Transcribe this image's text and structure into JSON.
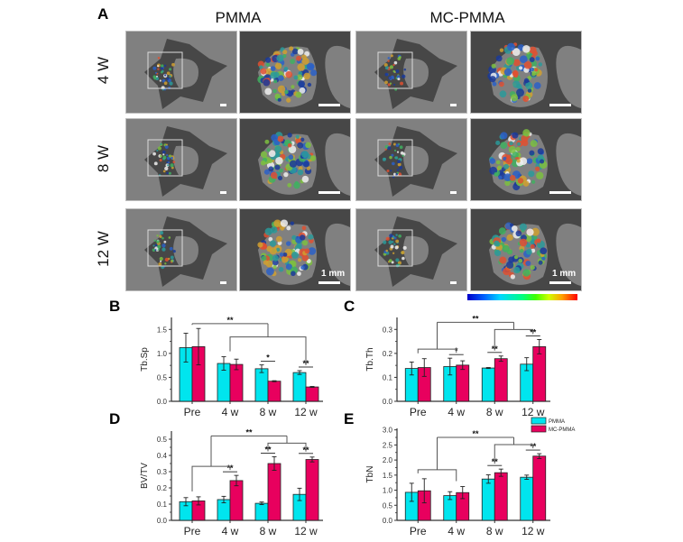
{
  "panel_labels": {
    "A": "A",
    "B": "B",
    "C": "C",
    "D": "D",
    "E": "E"
  },
  "panel_A": {
    "column_titles": [
      "PMMA",
      "MC-PMMA"
    ],
    "row_labels": [
      "4 W",
      "8 W",
      "12 W"
    ],
    "scale_bar_label": "1 mm",
    "colorbar": {
      "colors": [
        "#0000c8",
        "#00d8ff",
        "#40ff00",
        "#ffa000",
        "#ff0000"
      ]
    },
    "images": [
      {
        "row": "4 W",
        "group": "PMMA",
        "view": "overview"
      },
      {
        "row": "4 W",
        "group": "PMMA",
        "view": "zoom"
      },
      {
        "row": "4 W",
        "group": "MC-PMMA",
        "view": "overview"
      },
      {
        "row": "4 W",
        "group": "MC-PMMA",
        "view": "zoom"
      },
      {
        "row": "8 W",
        "group": "PMMA",
        "view": "overview"
      },
      {
        "row": "8 W",
        "group": "PMMA",
        "view": "zoom"
      },
      {
        "row": "8 W",
        "group": "MC-PMMA",
        "view": "overview"
      },
      {
        "row": "8 W",
        "group": "MC-PMMA",
        "view": "zoom"
      },
      {
        "row": "12 W",
        "group": "PMMA",
        "view": "overview"
      },
      {
        "row": "12 W",
        "group": "PMMA",
        "view": "zoom"
      },
      {
        "row": "12 W",
        "group": "MC-PMMA",
        "view": "overview"
      },
      {
        "row": "12 W",
        "group": "MC-PMMA",
        "view": "zoom"
      }
    ]
  },
  "colors": {
    "PMMA": "#00e5ee",
    "MC-PMMA": "#e8005e",
    "axis": "#333333",
    "bracket": "#555555"
  },
  "chart_data": [
    {
      "id": "B",
      "type": "bar",
      "title": "",
      "xlabel": "",
      "ylabel": "Tb.Sp",
      "categories": [
        "Pre",
        "4 w",
        "8 w",
        "12 w"
      ],
      "ylim": [
        0,
        1.75
      ],
      "yticks": [
        0.0,
        0.5,
        1.0,
        1.5
      ],
      "ytick_labels": [
        "0.0",
        "0.5",
        "1.0",
        "1.5"
      ],
      "series": [
        {
          "name": "PMMA",
          "values": [
            1.12,
            0.79,
            0.68,
            0.6
          ],
          "errors": [
            0.3,
            0.14,
            0.08,
            0.04
          ]
        },
        {
          "name": "MC-PMMA",
          "values": [
            1.14,
            0.77,
            0.42,
            0.3
          ],
          "errors": [
            0.38,
            0.11,
            0.01,
            0.01
          ]
        }
      ],
      "significance": [
        {
          "label": "*",
          "between": "8 w PMMA vs MC-PMMA"
        },
        {
          "label": "**",
          "between": "12 w PMMA vs MC-PMMA"
        },
        {
          "label": "**",
          "between": "Pre vs 4 w/8 w/12 w"
        }
      ],
      "legend": false
    },
    {
      "id": "C",
      "type": "bar",
      "title": "",
      "xlabel": "",
      "ylabel": "Tb.Th",
      "categories": [
        "Pre",
        "4 w",
        "8 w",
        "12 w"
      ],
      "ylim": [
        0,
        0.35
      ],
      "yticks": [
        0.0,
        0.1,
        0.2,
        0.3
      ],
      "ytick_labels": [
        "0.0",
        "0.1",
        "0.2",
        "0.3"
      ],
      "series": [
        {
          "name": "PMMA",
          "values": [
            0.137,
            0.145,
            0.139,
            0.155
          ],
          "errors": [
            0.027,
            0.035,
            0.002,
            0.027
          ]
        },
        {
          "name": "MC-PMMA",
          "values": [
            0.141,
            0.151,
            0.178,
            0.228
          ],
          "errors": [
            0.037,
            0.018,
            0.011,
            0.03
          ]
        }
      ],
      "significance": [
        {
          "label": "*",
          "between": "4 w PMMA vs MC-PMMA"
        },
        {
          "label": "**",
          "between": "8 w PMMA vs MC-PMMA"
        },
        {
          "label": "**",
          "between": "12 w PMMA vs MC-PMMA"
        },
        {
          "label": "**",
          "between": "Pre/4 w vs 8 w/12 w"
        }
      ],
      "legend": false
    },
    {
      "id": "D",
      "type": "bar",
      "title": "",
      "xlabel": "",
      "ylabel": "BV/TV",
      "categories": [
        "Pre",
        "4 w",
        "8 w",
        "12 w"
      ],
      "ylim": [
        0,
        0.55
      ],
      "yticks": [
        0.0,
        0.1,
        0.2,
        0.3,
        0.4,
        0.5
      ],
      "ytick_labels": [
        "0.0",
        "0.1",
        "0.2",
        "0.3",
        "0.4",
        "0.5"
      ],
      "series": [
        {
          "name": "PMMA",
          "values": [
            0.115,
            0.128,
            0.105,
            0.16
          ],
          "errors": [
            0.025,
            0.02,
            0.008,
            0.038
          ]
        },
        {
          "name": "MC-PMMA",
          "values": [
            0.12,
            0.245,
            0.35,
            0.375
          ],
          "errors": [
            0.025,
            0.032,
            0.042,
            0.015
          ]
        }
      ],
      "significance": [
        {
          "label": "**",
          "between": "4 w PMMA vs MC-PMMA"
        },
        {
          "label": "**",
          "between": "8 w PMMA vs MC-PMMA"
        },
        {
          "label": "**",
          "between": "12 w PMMA vs MC-PMMA"
        },
        {
          "label": "**",
          "between": "Pre/4 w vs 8 w/12 w"
        }
      ],
      "legend": false
    },
    {
      "id": "E",
      "type": "bar",
      "title": "",
      "xlabel": "",
      "ylabel": "TbN",
      "categories": [
        "Pre",
        "4 w",
        "8 w",
        "12 w"
      ],
      "ylim": [
        0,
        3.05
      ],
      "yticks": [
        0.0,
        0.5,
        1.0,
        1.5,
        2.0,
        2.5,
        3.0
      ],
      "ytick_labels": [
        "0.0",
        "0.5",
        "1.0",
        "1.5",
        "2.0",
        "2.5",
        "3.0"
      ],
      "series": [
        {
          "name": "PMMA",
          "values": [
            0.93,
            0.82,
            1.37,
            1.43
          ],
          "errors": [
            0.3,
            0.13,
            0.14,
            0.07
          ]
        },
        {
          "name": "MC-PMMA",
          "values": [
            0.98,
            0.92,
            1.58,
            2.13
          ],
          "errors": [
            0.4,
            0.2,
            0.12,
            0.08
          ]
        }
      ],
      "significance": [
        {
          "label": "**",
          "between": "8 w PMMA vs MC-PMMA"
        },
        {
          "label": "**",
          "between": "12 w PMMA vs MC-PMMA"
        },
        {
          "label": "**",
          "between": "Pre/4 w vs 8 w/12 w"
        }
      ],
      "legend": true,
      "legend_position": "top-right",
      "legend_entries": [
        "PMMA",
        "MC-PMMA"
      ]
    }
  ]
}
